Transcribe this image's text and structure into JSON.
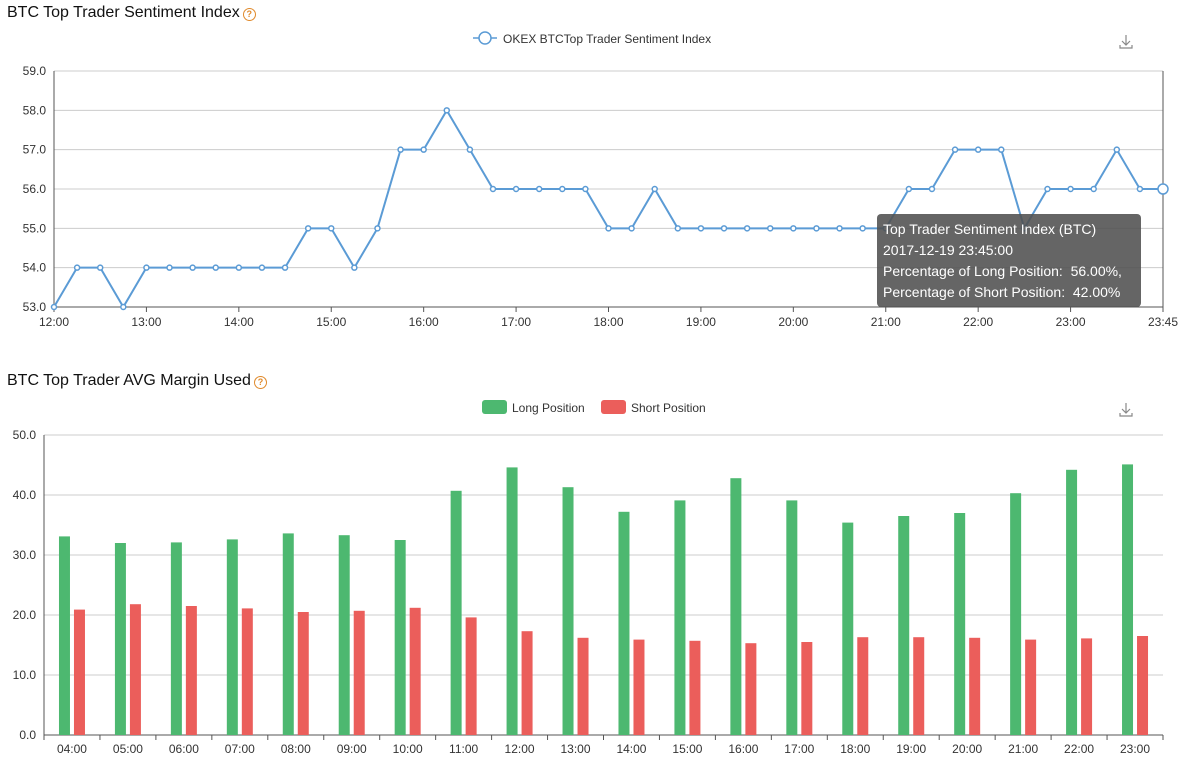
{
  "sentiment": {
    "title": "BTC Top Trader Sentiment Index",
    "help_icon": "question-circle-icon",
    "download_icon": "download-icon",
    "accent": "#5b9bd5"
  },
  "margin": {
    "title": "BTC Top Trader AVG Margin Used",
    "help_icon": "question-circle-icon",
    "download_icon": "download-icon",
    "long_color": "#4db870",
    "short_color": "#eb5e5b"
  },
  "tooltip": {
    "title": "Top Trader Sentiment Index (BTC)",
    "time": "2017-12-19 23:45:00",
    "long": "Percentage of Long Position:  56.00%,",
    "short": "Percentage of Short Position:  42.00%"
  },
  "chart_data": [
    {
      "type": "line",
      "series": [
        {
          "name": "OKEX BTCTop Trader Sentiment Index",
          "values": [
            53,
            54,
            54,
            53,
            54,
            54,
            54,
            54,
            54,
            54,
            54,
            55,
            55,
            54,
            55,
            57,
            57,
            58,
            57,
            56,
            56,
            56,
            56,
            56,
            55,
            55,
            56,
            55,
            55,
            55,
            55,
            55,
            55,
            55,
            55,
            55,
            55,
            56,
            56,
            57,
            57,
            57,
            55,
            56,
            56,
            56,
            57,
            56,
            56
          ]
        }
      ],
      "x_ticks": [
        "12:00",
        "13:00",
        "14:00",
        "15:00",
        "16:00",
        "17:00",
        "18:00",
        "19:00",
        "20:00",
        "21:00",
        "22:00",
        "23:00",
        "23:45"
      ],
      "y_ticks": [
        "53.0",
        "54.0",
        "55.0",
        "56.0",
        "57.0",
        "58.0",
        "59.0"
      ],
      "ylim": [
        53,
        59
      ],
      "grid": true,
      "legend": "top-center"
    },
    {
      "type": "bar",
      "categories": [
        "04:00",
        "05:00",
        "06:00",
        "07:00",
        "08:00",
        "09:00",
        "10:00",
        "11:00",
        "12:00",
        "13:00",
        "14:00",
        "15:00",
        "16:00",
        "17:00",
        "18:00",
        "19:00",
        "20:00",
        "21:00",
        "22:00",
        "23:00"
      ],
      "series": [
        {
          "name": "Long Position",
          "values": [
            33.1,
            32.0,
            32.1,
            32.6,
            33.6,
            33.3,
            32.5,
            40.7,
            44.6,
            41.3,
            37.2,
            39.1,
            42.8,
            39.1,
            35.4,
            36.5,
            37.0,
            40.3,
            44.2,
            45.1
          ]
        },
        {
          "name": "Short Position",
          "values": [
            20.9,
            21.8,
            21.5,
            21.1,
            20.5,
            20.7,
            21.2,
            19.6,
            17.3,
            16.2,
            15.9,
            15.7,
            15.3,
            15.5,
            16.3,
            16.3,
            16.2,
            15.9,
            16.1,
            16.5
          ]
        }
      ],
      "y_ticks": [
        "0.0",
        "10.0",
        "20.0",
        "30.0",
        "40.0",
        "50.0"
      ],
      "ylim": [
        0,
        50
      ],
      "grid": true,
      "legend": "top-center"
    }
  ]
}
